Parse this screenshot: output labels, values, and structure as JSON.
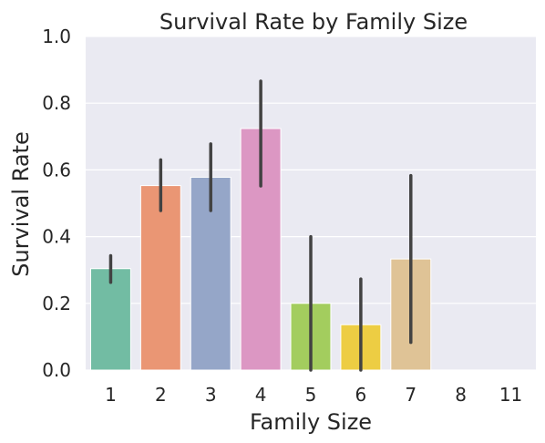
{
  "chart_data": {
    "type": "bar",
    "title": "Survival Rate by Family Size",
    "xlabel": "Family Size",
    "ylabel": "Survival Rate",
    "categories": [
      "1",
      "2",
      "3",
      "4",
      "5",
      "6",
      "7",
      "8",
      "11"
    ],
    "values": [
      0.304,
      0.553,
      0.578,
      0.724,
      0.2,
      0.136,
      0.333,
      0.0,
      0.0
    ],
    "error_bars": [
      [
        0.263,
        0.343
      ],
      [
        0.478,
        0.63
      ],
      [
        0.478,
        0.678
      ],
      [
        0.552,
        0.866
      ],
      [
        0.0,
        0.4
      ],
      [
        0.0,
        0.273
      ],
      [
        0.083,
        0.583
      ],
      null,
      null
    ],
    "ylim": [
      0,
      1.0
    ],
    "yticks": [
      "0.0",
      "0.2",
      "0.4",
      "0.6",
      "0.8",
      "1.0"
    ],
    "ytick_values": [
      0,
      0.2,
      0.4,
      0.6,
      0.8,
      1.0
    ],
    "grid": true,
    "colors": [
      "#72bca3",
      "#ea9674",
      "#95a6c8",
      "#dc97c3",
      "#a3cd5e",
      "#edcd43",
      "#dfc396",
      "#b3b3b3",
      "#b3b3b3"
    ],
    "plot_background": "#eaeaf2",
    "error_color": "#424242"
  }
}
